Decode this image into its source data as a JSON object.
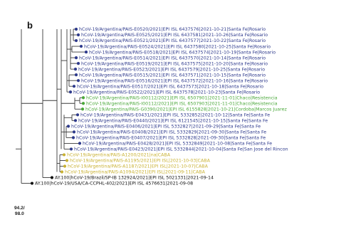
{
  "figure": {
    "panel_label": "b",
    "node_support": {
      "line1": "94.2/",
      "line2": "98.0"
    }
  },
  "legend_colors": {
    "santa_fe": "#2e3a8c",
    "chaco_cordoba": "#4aa83a",
    "caba": "#c8b030",
    "reference": "#111111"
  },
  "tips": [
    {
      "label": "hCoV-19/Argentina/PAIS-E0520/2021|EPI ISL 6437576|2021-10-21|Santa Fe|Rosario",
      "color": "#2e3a8c"
    },
    {
      "label": "hCoV-19/Argentina/PAIS-E0525/2021|EPI ISL 6437581|2021-10-26|Santa Fe|Rosario",
      "color": "#2e3a8c"
    },
    {
      "label": "hCoV-19/Argentina/PAIS-E0521/2021|EPI ISL 6437577|2021-10-22|Santa Fe|Rosario",
      "color": "#2e3a8c"
    },
    {
      "label": "hCoV-19/Argentina/PAIS-E0524/2021|EPI ISL 6437580|2021-10-25|Santa Fe|Rosario",
      "color": "#2e3a8c"
    },
    {
      "label": "hCoV-19/Argentina/PAIS-E0518/2021|EPI ISL 6437574|2021-10-19|Santa Fe|Rosario",
      "color": "#2e3a8c"
    },
    {
      "label": "hCoV-19/Argentina/PAIS-E0514/2021|EPI ISL 6437570|2021-10-14|Santa Fe|Rosario",
      "color": "#2e3a8c"
    },
    {
      "label": "hCoV-19/Argentina/PAIS-E0519/2021|EPI ISL 6437575|2021-10-20|Santa Fe|Rosario",
      "color": "#2e3a8c"
    },
    {
      "label": "hCoV-19/Argentina/PAIS-E0523/2021|EPI ISL 6437579|2021-10-25|Santa Fe|Rosario",
      "color": "#2e3a8c"
    },
    {
      "label": "hCoV-19/Argentina/PAIS-E0515/2021|EPI ISL 6437571|2021-10-15|Santa Fe|Rosario",
      "color": "#2e3a8c"
    },
    {
      "label": "hCoV-19/Argentina/PAIS-E0516/2021|EPI ISL 6437572|2021-10-16|Santa Fe|Rosario",
      "color": "#2e3a8c"
    },
    {
      "label": "hCoV-19/Argentina/PAIS-E0517/2021|EPI ISL 6437573|2021-10-18|Santa Fe|Rosario",
      "color": "#2e3a8c"
    },
    {
      "label": "hCoV-19/Argentina/PAIS-E0522/2021|EPI ISL 6437578|2021-10-23|Santa Fe|Rosario",
      "color": "#2e3a8c"
    },
    {
      "label": "hCoV-19/Argentina/PAIS-I00112/2021|EPI ISL 6507901|2021-11-01|Chaco|Resistencia",
      "color": "#4aa83a"
    },
    {
      "label": "hCoV-19/Argentina/PAIS-I00112/2021|EPI ISL 6507903|2021-11-01|Chaco|Resistencia",
      "color": "#4aa83a"
    },
    {
      "label": "hCoV-19/Argentina/PAIS-G0390/2021|EPI ISL 6155828|2021-10-21|Cordoba|Marcos Juarez",
      "color": "#4aa83a"
    },
    {
      "label": "hCoV-19/Argentina/PAIS-E0431/2021|EPI ISL 5332852|2021-10-12|Santa Fe|Santa Fe",
      "color": "#2e3a8c"
    },
    {
      "label": "hCoV-19/Argentina/PAIS-E0440/2021|EPI ISL 6121545|2021-10-15|Santa Fe|Santa Fe",
      "color": "#2e3a8c"
    },
    {
      "label": "hCoV-19/Argentina/PAIS-E0406/2021|EPI ISL 5332827|2021-09-29|Santa Fe|Santa Fe",
      "color": "#2e3a8c"
    },
    {
      "label": "hCoV-19/Argentina/PAIS-E0408/2021|EPI ISL 5332829|2021-09-30|Santa Fe|Santa Fe",
      "color": "#2e3a8c"
    },
    {
      "label": "hCoV-19/Argentina/PAIS-E0407/2021|EPI ISL 5332828|2021-09-30|Santa Fe|Santa Fe",
      "color": "#2e3a8c"
    },
    {
      "label": "hCoV-19/Argentina/PAIS-E0428/2021|EPI ISL 5332849|2021-10-08|Santa Fe|Santa Fe",
      "color": "#2e3a8c"
    },
    {
      "label": "hCoV-19/Argentina/PAIS-E0423/2021|EPI ISL 5332844|2021-10-04|Santa Fe|San Jose del Rincon",
      "color": "#2e3a8c"
    },
    {
      "label": "hCoV-19/Argentina/PAIS-A1200/2021|na|CABA",
      "color": "#c8b030"
    },
    {
      "label": "hCoV-19/Argentina/PAIS-A1195/2021|EPI ISL|2021-10-03|CABA",
      "color": "#c8b030"
    },
    {
      "label": "hCoV-19/Argentina/PAIS-A1187/2021|EPI ISL|2021-10-07|CABA",
      "color": "#c8b030"
    },
    {
      "label": "hCoV-19/Argentina/PAIS-A1094/2021|EPI ISL|2021-09-11|CABA",
      "color": "#c8b030"
    },
    {
      "label": "AY.100|hCoV-19/Brazil/SP-IB 132924/2021|EPI ISL 5021331|2021-09-14",
      "color": "#111111"
    },
    {
      "label": "AY.100|hCoV-19/USA/CA-CCPHL-402/2021|EPI ISL 4576631|2021-09-08",
      "color": "#111111"
    }
  ]
}
